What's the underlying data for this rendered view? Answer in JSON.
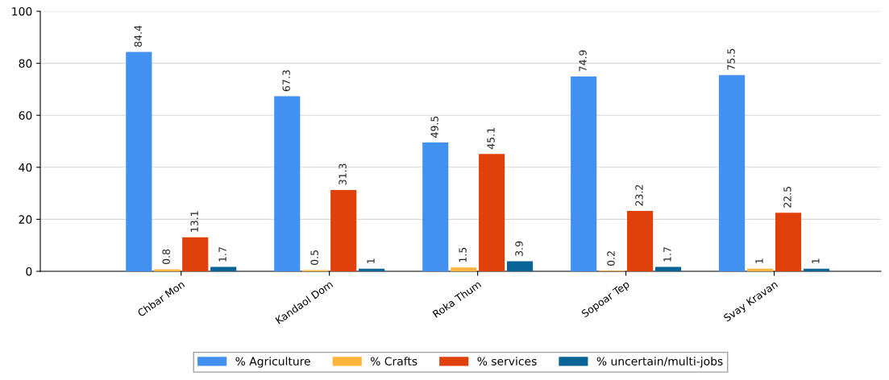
{
  "chart_data": {
    "type": "bar",
    "categories": [
      "Chbar Mon",
      "Kandaol Dom",
      "Roka Thum",
      "Sopoar Tep",
      "Svay Kravan"
    ],
    "series": [
      {
        "name": "% Agriculture",
        "color": "#4290f0",
        "values": [
          84.4,
          67.3,
          49.5,
          74.9,
          75.5
        ]
      },
      {
        "name": "% Crafts",
        "color": "#ffb43c",
        "values": [
          0.8,
          0.5,
          1.5,
          0.2,
          1
        ]
      },
      {
        "name": "% services",
        "color": "#e0400a",
        "values": [
          13.1,
          31.3,
          45.1,
          23.2,
          22.5
        ]
      },
      {
        "name": "% uncertain/multi-jobs",
        "color": "#0a6496",
        "values": [
          1.7,
          1,
          3.9,
          1.7,
          1
        ]
      }
    ],
    "ylim": [
      0,
      100
    ],
    "yticks": [
      0,
      20,
      40,
      60,
      80,
      100
    ],
    "grid": "y",
    "legend": "bottom",
    "data_labels": true
  }
}
